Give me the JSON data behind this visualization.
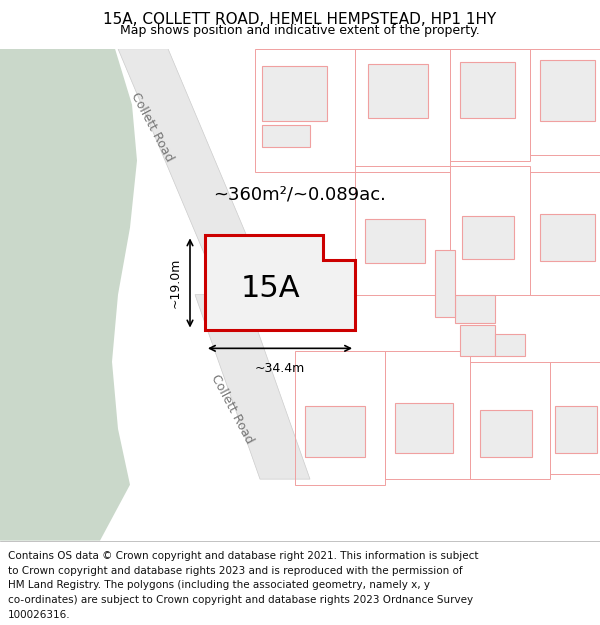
{
  "title": "15A, COLLETT ROAD, HEMEL HEMPSTEAD, HP1 1HY",
  "subtitle": "Map shows position and indicative extent of the property.",
  "footer_lines": [
    "Contains OS data © Crown copyright and database right 2021. This information is subject",
    "to Crown copyright and database rights 2023 and is reproduced with the permission of",
    "HM Land Registry. The polygons (including the associated geometry, namely x, y",
    "co-ordinates) are subject to Crown copyright and database rights 2023 Ordnance Survey",
    "100026316."
  ],
  "area_label": "~360m²/~0.089ac.",
  "property_label": "15A",
  "width_label": "~34.4m",
  "height_label": "~19.0m",
  "road_label": "Collett Road",
  "bg_white": "#ffffff",
  "map_bg": "#ffffff",
  "green_color": "#cad8ca",
  "road_fill": "#e8e8e8",
  "building_fill": "#ececec",
  "building_stroke": "#f0a0a0",
  "lot_stroke": "#f0a0a0",
  "property_fill": "#f2f2f2",
  "property_stroke": "#cc0000",
  "text_color": "#000000",
  "footer_color": "#111111",
  "title_fontsize": 11,
  "subtitle_fontsize": 9,
  "footer_fontsize": 7.5,
  "area_fontsize": 13,
  "prop_label_fontsize": 22,
  "road_label_fontsize": 9,
  "dim_fontsize": 9
}
